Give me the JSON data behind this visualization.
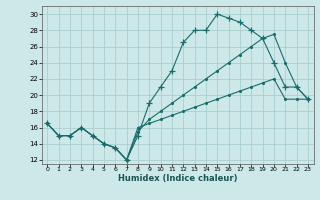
{
  "xlabel": "Humidex (Indice chaleur)",
  "bg_color": "#cde8e8",
  "grid_color": "#aacece",
  "line_color": "#1a6b6b",
  "xlim": [
    -0.5,
    23.5
  ],
  "ylim": [
    11.5,
    31
  ],
  "xticks": [
    0,
    1,
    2,
    3,
    4,
    5,
    6,
    7,
    8,
    9,
    10,
    11,
    12,
    13,
    14,
    15,
    16,
    17,
    18,
    19,
    20,
    21,
    22,
    23
  ],
  "yticks": [
    12,
    14,
    16,
    18,
    20,
    22,
    24,
    26,
    28,
    30
  ],
  "line1_x": [
    0,
    1,
    2,
    3,
    4,
    5,
    6,
    7,
    8,
    9,
    10,
    11,
    12,
    13,
    14,
    15,
    16,
    17,
    18,
    19,
    20,
    21,
    22,
    23
  ],
  "line1_y": [
    16.5,
    15,
    15,
    16,
    15,
    14,
    13.5,
    12,
    15,
    19,
    21,
    23,
    26.5,
    28,
    28,
    30,
    29.5,
    29,
    28,
    27,
    24,
    21,
    21,
    19.5
  ],
  "line2_x": [
    0,
    1,
    2,
    3,
    4,
    5,
    6,
    7,
    8,
    9,
    10,
    11,
    12,
    13,
    14,
    15,
    16,
    17,
    18,
    19,
    20,
    21,
    22,
    23
  ],
  "line2_y": [
    16.5,
    15,
    15,
    16,
    15,
    14,
    13.5,
    12,
    15.5,
    17,
    18,
    19,
    20,
    21,
    22,
    23,
    24,
    25,
    26,
    27,
    27.5,
    24,
    21,
    19.5
  ],
  "line3_x": [
    0,
    1,
    2,
    3,
    4,
    5,
    6,
    7,
    8,
    9,
    10,
    11,
    12,
    13,
    14,
    15,
    16,
    17,
    18,
    19,
    20,
    21,
    22,
    23
  ],
  "line3_y": [
    16.5,
    15,
    15,
    16,
    15,
    14,
    13.5,
    12,
    16,
    16.5,
    17,
    17.5,
    18,
    18.5,
    19,
    19.5,
    20,
    20.5,
    21,
    21.5,
    22,
    19.5,
    19.5,
    19.5
  ]
}
